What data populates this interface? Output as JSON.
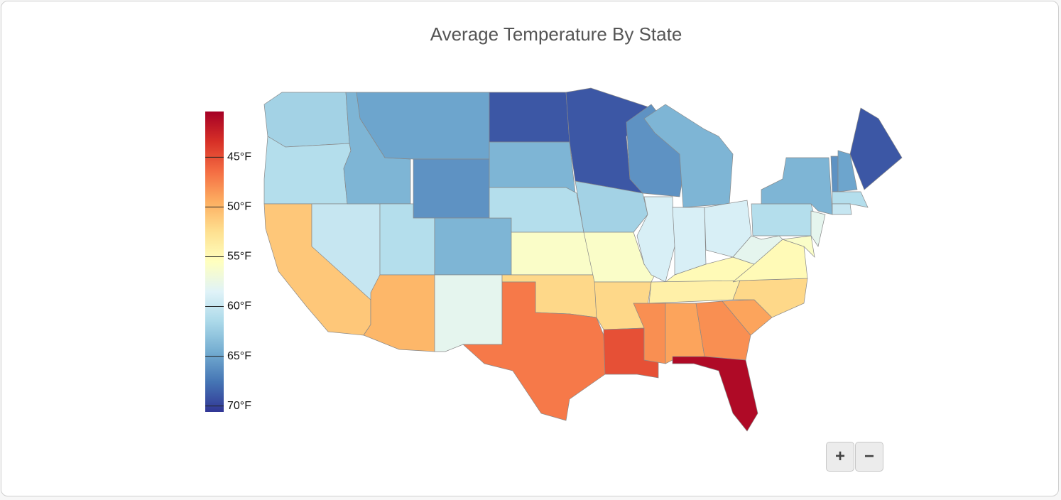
{
  "chart_data": {
    "type": "choropleth",
    "title": "Average Temperature By State",
    "values": [
      49,
      50,
      60,
      51,
      47,
      46,
      45,
      50,
      61,
      47,
      53,
      42,
      47,
      50,
      55,
      59,
      64,
      42,
      49,
      55,
      59,
      66,
      45,
      47,
      52,
      52,
      52,
      56,
      57,
      63,
      62,
      63,
      70,
      62,
      59,
      56,
      53,
      50,
      47,
      45,
      46,
      42,
      50,
      51,
      53,
      55
    ],
    "clim": [
      40.4,
      70.6
    ],
    "ticks": [
      {
        "value": 45,
        "label": "45°F"
      },
      {
        "value": 50,
        "label": "50°F"
      },
      {
        "value": 55,
        "label": "55°F"
      },
      {
        "value": 60,
        "label": "60°F"
      },
      {
        "value": 65,
        "label": "65°F"
      },
      {
        "value": 70,
        "label": "70°F"
      }
    ],
    "colorscale": [
      "#313695",
      "#4575b4",
      "#74add1",
      "#abd9e9",
      "#e0f3f8",
      "#ffffbf",
      "#fee090",
      "#fdae61",
      "#f46d43",
      "#d73027",
      "#a50026"
    ]
  },
  "controls": {
    "zoom_in": "+",
    "zoom_out": "−"
  }
}
